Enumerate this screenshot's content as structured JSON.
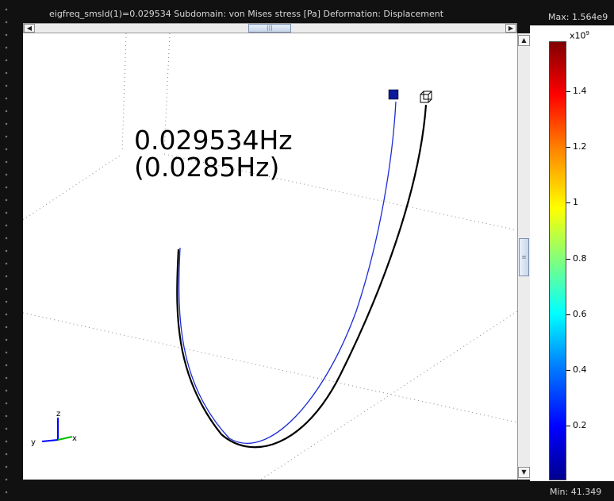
{
  "header": {
    "info": "eigfreq_smsld(1)=0.029534   Subdomain: von Mises stress [Pa]   Deformation: Displacement"
  },
  "scrollbars": {
    "left_arrow": "◀",
    "right_arrow": "▶",
    "up_arrow": "▲",
    "down_arrow": "▼",
    "thumb_grip": "|||"
  },
  "annotation": {
    "line1": "0.029534Hz",
    "line2": "(0.0285Hz)"
  },
  "colorbar": {
    "max_label": "Max: 1.564e9",
    "min_label": "Min: 41.349",
    "exponent_base": "x10",
    "exponent_power": "9",
    "ticks": [
      "1.4",
      "1.2",
      "1",
      "0.8",
      "0.6",
      "0.4",
      "0.2"
    ],
    "colormap": "jet"
  },
  "axes": {
    "x": "x",
    "y": "y",
    "z": "z",
    "x_color": "#00c000",
    "y_color": "#0000ff",
    "z_color": "#0000ff"
  },
  "colors": {
    "deformed_cable": "#1a2bd6",
    "reference_cable": "#000000",
    "tip_marker": "#0a1a9a"
  }
}
